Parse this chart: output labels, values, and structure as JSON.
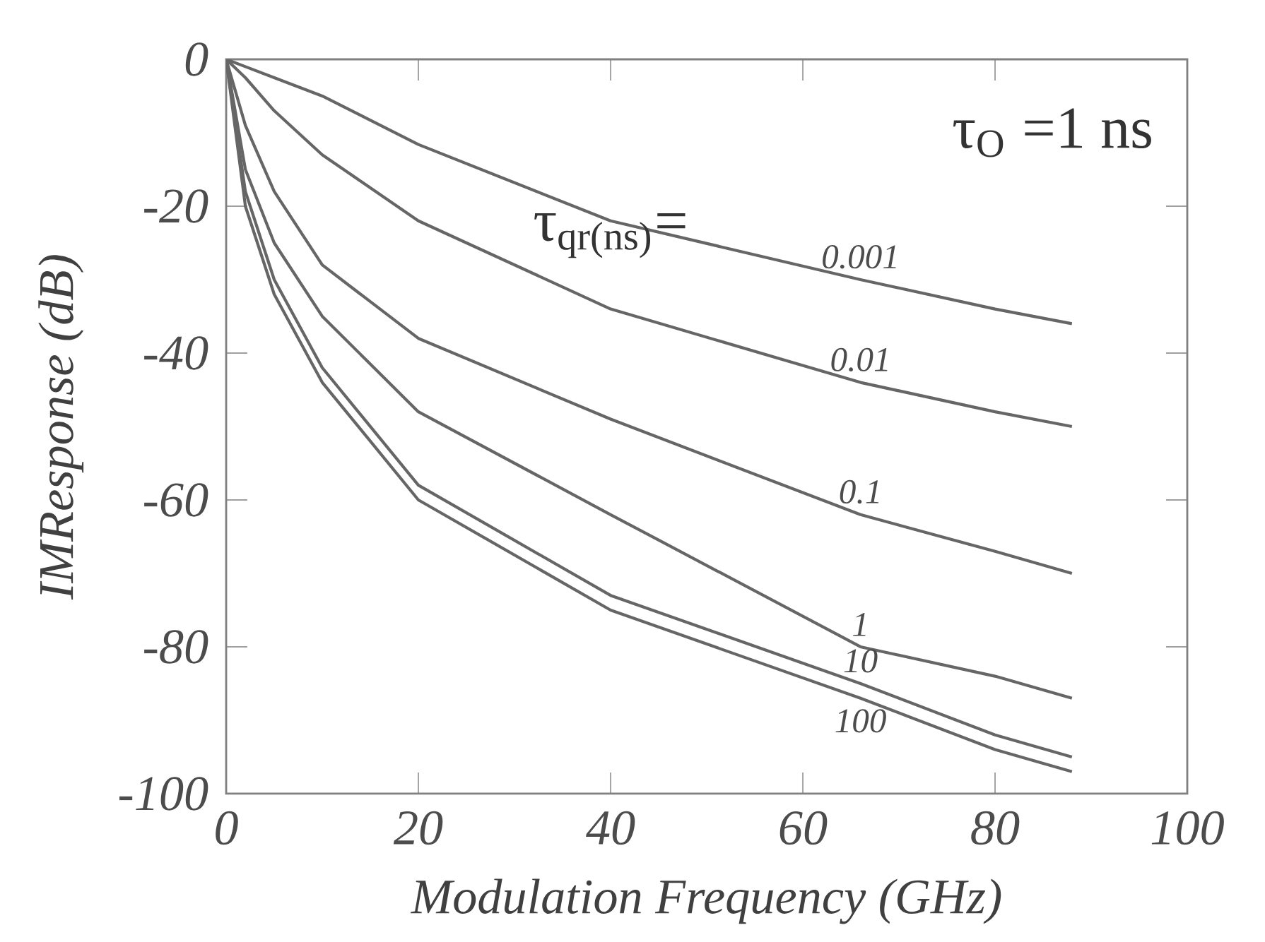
{
  "chart_data": {
    "type": "line",
    "xlabel": "Modulation Frequency (GHz)",
    "ylabel": "IMResponse (dB)",
    "xlim": [
      0,
      100
    ],
    "ylim": [
      -100,
      0
    ],
    "xticks": [
      0,
      20,
      40,
      60,
      80,
      100
    ],
    "yticks": [
      -100,
      -80,
      -60,
      -40,
      -20,
      0
    ],
    "x": [
      0,
      2,
      5,
      10,
      20,
      40,
      66,
      80,
      88
    ],
    "series": [
      {
        "name": "0.001",
        "color": "#666666",
        "values": [
          0,
          -1,
          -2.5,
          -5,
          -11.6,
          -22,
          -30,
          -34,
          -36
        ]
      },
      {
        "name": "0.01",
        "color": "#666666",
        "values": [
          0,
          -2.5,
          -7,
          -13,
          -22,
          -34,
          -44,
          -48,
          -50
        ]
      },
      {
        "name": "0.1",
        "color": "#666666",
        "values": [
          0,
          -9,
          -18,
          -28,
          -38,
          -49,
          -62,
          -67,
          -70
        ]
      },
      {
        "name": "1",
        "color": "#666666",
        "values": [
          0,
          -15,
          -25,
          -35,
          -48,
          -62,
          -80,
          -84,
          -87
        ]
      },
      {
        "name": "10",
        "color": "#666666",
        "values": [
          0,
          -18,
          -30,
          -42,
          -58,
          -73,
          -85,
          -92,
          -95
        ]
      },
      {
        "name": "100",
        "color": "#666666",
        "values": [
          0,
          -20,
          -32,
          -44,
          -60,
          -75,
          -87,
          -94,
          -97
        ]
      }
    ],
    "annotations": [
      "τ$_{O}$ =1 ns",
      "τ$_{qr(ns)}$="
    ],
    "grid": false,
    "legend": false,
    "marker": "none",
    "line_style": "solid"
  }
}
